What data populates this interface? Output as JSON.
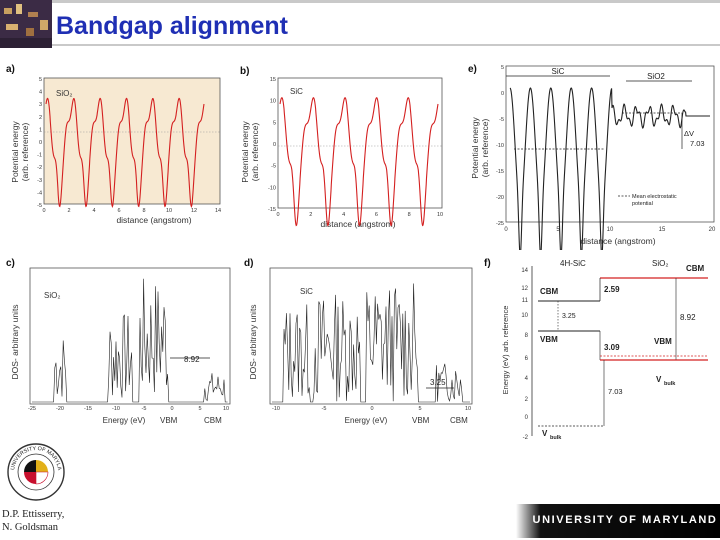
{
  "slide": {
    "title": "Bandgap alignment",
    "credit": [
      "D.P. Ettisserry,",
      "N. Goldsman"
    ],
    "footer": "UNIVERSITY OF MARYLAND",
    "seal_text": "UNIVERSITY OF MARYLAND"
  },
  "panels": {
    "a": {
      "label": "a)",
      "material": "SiO₂",
      "xlabel": "distance (angstrom)",
      "ylabel": [
        "Potential energy",
        "(arb. reference)"
      ],
      "yticks": [
        "5",
        "4",
        "3",
        "2",
        "1",
        "0",
        "-1",
        "-2",
        "-3",
        "-4",
        "-5"
      ],
      "xticks": [
        "0",
        "2",
        "4",
        "6",
        "8",
        "10",
        "12",
        "14"
      ]
    },
    "b": {
      "label": "b)",
      "material": "SiC",
      "xlabel": "distance (angstrom)",
      "ylabel": [
        "Potential energy",
        "(arb. reference)"
      ],
      "yticks": [
        "15",
        "10",
        "5",
        "0",
        "-5",
        "-10",
        "-15"
      ],
      "xticks": [
        "0",
        "2",
        "4",
        "6",
        "8",
        "10"
      ]
    },
    "e": {
      "label": "e)",
      "region_sic": "SiC",
      "region_sio2": "SiO2",
      "delta_v": "ΔV",
      "delta_v_value": "7.03",
      "legend": [
        "Mean electrostatic",
        "potential"
      ],
      "xlabel": "distance (angstrom)",
      "ylabel": [
        "Potential energy",
        "(arb. reference)"
      ],
      "yticks": [
        "5",
        "0",
        "-5",
        "-10",
        "-15",
        "-20",
        "-25"
      ],
      "xticks": [
        "0",
        "5",
        "10",
        "15",
        "20"
      ]
    },
    "c": {
      "label": "c)",
      "material": "SiO₂",
      "gap_value": "8.92",
      "vbm": "VBM",
      "cbm": "CBM",
      "xlabel": "Energy (eV)",
      "ylabel": "DOS- arbitrary units",
      "xticks": [
        "-25",
        "-20",
        "-15",
        "-10",
        "-5",
        "0",
        "5",
        "10"
      ]
    },
    "d": {
      "label": "d)",
      "material": "SiC",
      "gap_value": "3.25",
      "vbm": "VBM",
      "cbm": "CBM",
      "xlabel": "Energy (eV)",
      "ylabel": "DOS- arbitrary units",
      "xticks": [
        "-10",
        "-5",
        "0",
        "5",
        "10"
      ]
    },
    "f": {
      "label": "f)",
      "col_sic": "4H-SiC",
      "col_sio2": "SiO₂",
      "cbm_left": "CBM",
      "cbm_right": "CBM",
      "vbm_left": "VBM",
      "vbm_right": "VBM",
      "offset_cb": "2.59",
      "gap_sic": "3.25",
      "gap_sio2": "8.92",
      "offset_vb": "3.09",
      "vbulk_right": "V",
      "vbulk_right_sub": "bulk",
      "vbulk_left": "V",
      "vbulk_left_sub": "bulk",
      "dv": "7.03",
      "ylabel": "Energy (eV) arb. reference",
      "yticks": [
        "14",
        "12",
        "11",
        "10",
        "8",
        "6",
        "4",
        "2",
        "0",
        "-2"
      ]
    }
  },
  "colors": {
    "title": "#1f2fb4",
    "curve": "#d42020",
    "plot_bg": "#f7e9d2",
    "dos": "#222222",
    "level_red": "#d42020"
  }
}
